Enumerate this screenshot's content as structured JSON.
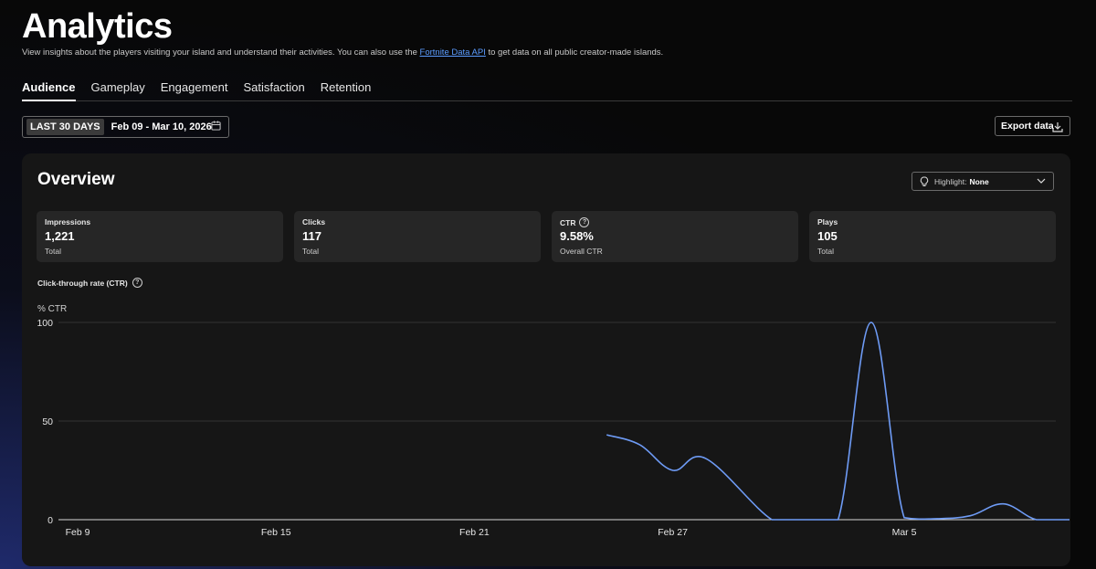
{
  "header": {
    "title": "Analytics",
    "subtitle_pre": "View insights about the players visiting your island and understand their activities. You can also use the ",
    "subtitle_link": "Fortnite Data API",
    "subtitle_post": " to get data on all public creator-made islands."
  },
  "tabs": [
    "Audience",
    "Gameplay",
    "Engagement",
    "Satisfaction",
    "Retention"
  ],
  "active_tab": "Audience",
  "date_filter": {
    "chip": "LAST 30 DAYS",
    "range": "Feb 09 - Mar 10, 2026",
    "icon": "calendar-icon"
  },
  "export": {
    "label": "Export data",
    "icon": "download-icon"
  },
  "overview": {
    "title": "Overview",
    "highlight_label": "Highlight:",
    "highlight_value": "None"
  },
  "cards": [
    {
      "label": "Impressions",
      "value": "1,221",
      "sub": "Total",
      "help": false
    },
    {
      "label": "Clicks",
      "value": "117",
      "sub": "Total",
      "help": false
    },
    {
      "label": "CTR",
      "value": "9.58%",
      "sub": "Overall CTR",
      "help": true
    },
    {
      "label": "Plays",
      "value": "105",
      "sub": "Total",
      "help": false
    }
  ],
  "chart_data": {
    "type": "line",
    "title": "Click-through rate (CTR)",
    "ylabel": "% CTR",
    "xlabel": "",
    "ylim": [
      0,
      100
    ],
    "yticks": [
      0,
      50,
      100
    ],
    "grid": true,
    "x_labels": [
      "Feb 9",
      "Feb 15",
      "Feb 21",
      "Feb 27",
      "Mar 5"
    ],
    "series": [
      {
        "color": "#6e9bf5",
        "points": [
          {
            "x": "Feb 25",
            "y": 43
          },
          {
            "x": "Feb 26",
            "y": 38
          },
          {
            "x": "Feb 27",
            "y": 25
          },
          {
            "x": "Feb 28",
            "y": 31
          },
          {
            "x": "Mar 1",
            "y": 0
          },
          {
            "x": "Mar 2",
            "y": 0
          },
          {
            "x": "Mar 3",
            "y": 0
          },
          {
            "x": "Mar 4",
            "y": 100
          },
          {
            "x": "Mar 5",
            "y": 1
          },
          {
            "x": "Mar 6",
            "y": 0.5
          },
          {
            "x": "Mar 7",
            "y": 2
          },
          {
            "x": "Mar 8",
            "y": 8
          },
          {
            "x": "Mar 9",
            "y": 0
          },
          {
            "x": "Mar 10",
            "y": 0
          }
        ]
      }
    ]
  }
}
